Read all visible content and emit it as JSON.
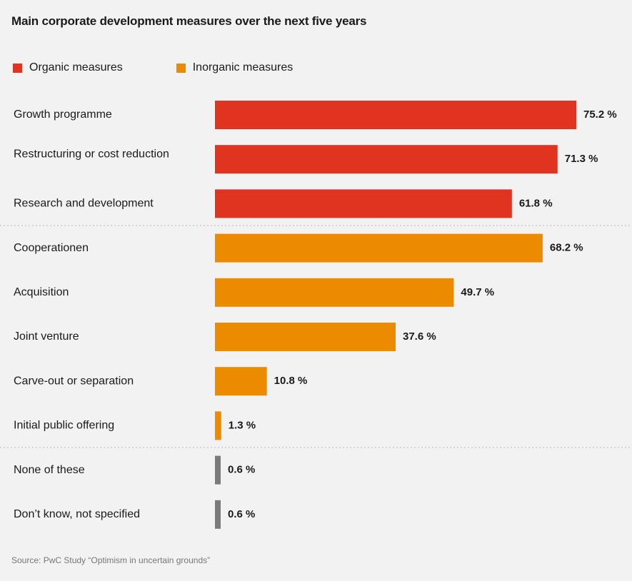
{
  "chart_data": {
    "type": "bar",
    "orientation": "horizontal",
    "title": "Main corporate development measures over the next five years",
    "legend": [
      {
        "name": "Organic measures",
        "color": "#e03420"
      },
      {
        "name": "Inorganic measures",
        "color": "#ec8a00"
      }
    ],
    "categories": [
      "Growth programme",
      "Restructuring or cost reduction",
      "Research and development",
      "Cooperationen",
      "Acquisition",
      "Joint venture",
      "Carve-out or separation",
      "Initial public offering",
      "None of these",
      "Don’t know, not specified"
    ],
    "values": [
      75.2,
      71.3,
      61.8,
      68.2,
      49.7,
      37.6,
      10.8,
      1.3,
      0.6,
      0.6
    ],
    "value_labels": [
      "75.2 %",
      "71.3 %",
      "61.8 %",
      "68.2 %",
      "49.7 %",
      "37.6 %",
      "10.8 %",
      "1.3 %",
      "0.6 %",
      "0.6 %"
    ],
    "groups": [
      "organic",
      "organic",
      "organic",
      "inorganic",
      "inorganic",
      "inorganic",
      "inorganic",
      "inorganic",
      "other",
      "other"
    ],
    "group_colors": {
      "organic": "#e03420",
      "inorganic": "#ec8a00",
      "other": "#7a7a7a"
    },
    "xlim": [
      0,
      100
    ],
    "grid": false,
    "legend_position": "top-left"
  },
  "source": "Source: PwC Study “Optimism in uncertain grounds”"
}
